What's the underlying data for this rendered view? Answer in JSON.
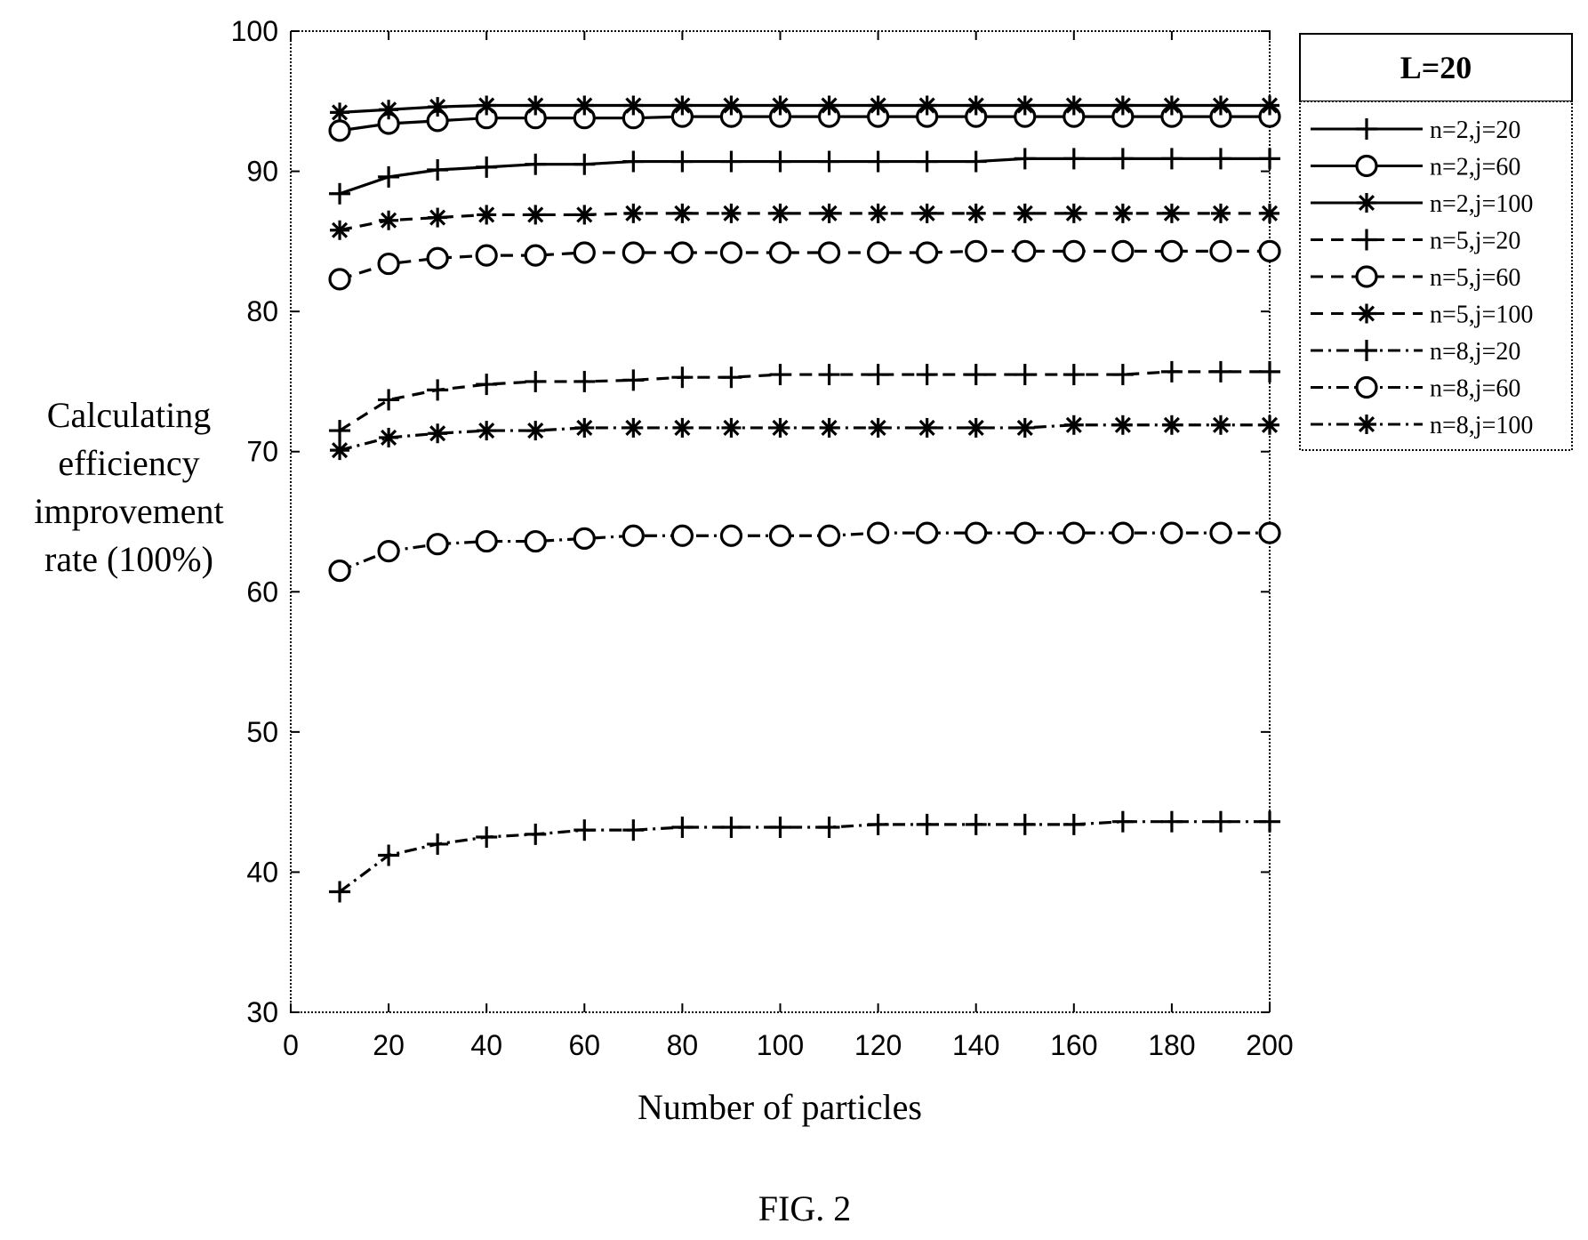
{
  "figure": {
    "caption": "FIG. 2"
  },
  "chart_data": {
    "type": "line",
    "title": "",
    "xlabel": "Number of particles",
    "ylabel_lines": [
      "Calculating",
      "efficiency",
      "improvement",
      "rate (100%)"
    ],
    "xlim": [
      0,
      200
    ],
    "ylim": [
      30,
      100
    ],
    "xticks": [
      0,
      20,
      40,
      60,
      80,
      100,
      120,
      140,
      160,
      180,
      200
    ],
    "yticks": [
      30,
      40,
      50,
      60,
      70,
      80,
      90,
      100
    ],
    "grid": false,
    "legend": {
      "title": "L=20",
      "position": "outside-right"
    },
    "x": [
      10,
      20,
      30,
      40,
      50,
      60,
      70,
      80,
      90,
      100,
      110,
      120,
      130,
      140,
      150,
      160,
      170,
      180,
      190,
      200
    ],
    "series": [
      {
        "name": "n=2,j=20",
        "line": "solid",
        "marker": "plus",
        "values": [
          88.4,
          89.6,
          90.1,
          90.3,
          90.5,
          90.5,
          90.7,
          90.7,
          90.7,
          90.7,
          90.7,
          90.7,
          90.7,
          90.7,
          90.9,
          90.9,
          90.9,
          90.9,
          90.9,
          90.9
        ]
      },
      {
        "name": "n=2,j=60",
        "line": "solid",
        "marker": "circle",
        "values": [
          92.9,
          93.4,
          93.6,
          93.8,
          93.8,
          93.8,
          93.8,
          93.9,
          93.9,
          93.9,
          93.9,
          93.9,
          93.9,
          93.9,
          93.9,
          93.9,
          93.9,
          93.9,
          93.9,
          93.9
        ]
      },
      {
        "name": "n=2,j=100",
        "line": "solid",
        "marker": "star",
        "values": [
          94.2,
          94.4,
          94.6,
          94.7,
          94.7,
          94.7,
          94.7,
          94.7,
          94.7,
          94.7,
          94.7,
          94.7,
          94.7,
          94.7,
          94.7,
          94.7,
          94.7,
          94.7,
          94.7,
          94.7
        ]
      },
      {
        "name": "n=5,j=20",
        "line": "dashed",
        "marker": "plus",
        "values": [
          71.5,
          73.7,
          74.4,
          74.8,
          75.0,
          75.0,
          75.1,
          75.3,
          75.3,
          75.5,
          75.5,
          75.5,
          75.5,
          75.5,
          75.5,
          75.5,
          75.5,
          75.7,
          75.7,
          75.7
        ]
      },
      {
        "name": "n=5,j=60",
        "line": "dashed",
        "marker": "circle",
        "values": [
          82.3,
          83.4,
          83.8,
          84.0,
          84.0,
          84.2,
          84.2,
          84.2,
          84.2,
          84.2,
          84.2,
          84.2,
          84.2,
          84.3,
          84.3,
          84.3,
          84.3,
          84.3,
          84.3,
          84.3
        ]
      },
      {
        "name": "n=5,j=100",
        "line": "dashed",
        "marker": "star",
        "values": [
          85.8,
          86.5,
          86.7,
          86.9,
          86.9,
          86.9,
          87.0,
          87.0,
          87.0,
          87.0,
          87.0,
          87.0,
          87.0,
          87.0,
          87.0,
          87.0,
          87.0,
          87.0,
          87.0,
          87.0
        ]
      },
      {
        "name": "n=8,j=20",
        "line": "dashdot",
        "marker": "plus",
        "values": [
          38.6,
          41.2,
          42.0,
          42.5,
          42.7,
          43.0,
          43.0,
          43.2,
          43.2,
          43.2,
          43.2,
          43.4,
          43.4,
          43.4,
          43.4,
          43.4,
          43.6,
          43.6,
          43.6,
          43.6
        ]
      },
      {
        "name": "n=8,j=60",
        "line": "dashdot",
        "marker": "circle",
        "values": [
          61.5,
          62.9,
          63.4,
          63.6,
          63.6,
          63.8,
          64.0,
          64.0,
          64.0,
          64.0,
          64.0,
          64.2,
          64.2,
          64.2,
          64.2,
          64.2,
          64.2,
          64.2,
          64.2,
          64.2
        ]
      },
      {
        "name": "n=8,j=100",
        "line": "dashdot",
        "marker": "star",
        "values": [
          70.1,
          71.0,
          71.3,
          71.5,
          71.5,
          71.7,
          71.7,
          71.7,
          71.7,
          71.7,
          71.7,
          71.7,
          71.7,
          71.7,
          71.7,
          71.9,
          71.9,
          71.9,
          71.9,
          71.9
        ]
      }
    ]
  }
}
